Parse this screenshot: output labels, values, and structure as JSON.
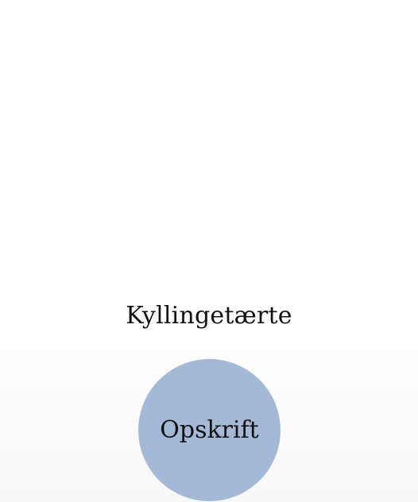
{
  "recipe": {
    "title": "Kyllingetærte",
    "button_label": "Opskrift"
  },
  "colors": {
    "button_bg": "#a3b9d5",
    "text": "#111111",
    "background": "#ffffff"
  }
}
